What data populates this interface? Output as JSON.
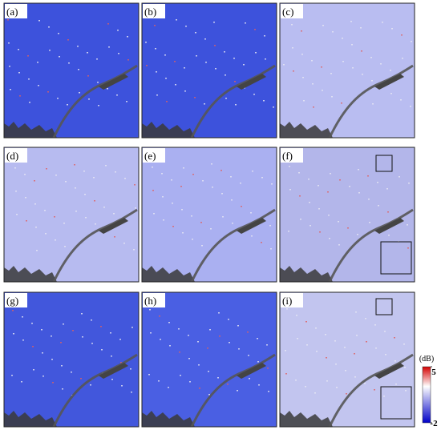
{
  "panels": [
    {
      "label": "(a)",
      "color": "#3d52dc"
    },
    {
      "label": "(b)",
      "color": "#3d52dc"
    },
    {
      "label": "(c)",
      "color": "#b9bdf1"
    },
    {
      "label": "(d)",
      "color": "#b7bbf0"
    },
    {
      "label": "(e)",
      "color": "#aab0f1"
    },
    {
      "label": "(f)",
      "color": "#b3b6ea"
    },
    {
      "label": "(g)",
      "color": "#4257dc"
    },
    {
      "label": "(h)",
      "color": "#4a5fe3"
    },
    {
      "label": "(i)",
      "color": "#c2c5ef"
    }
  ],
  "colorbar": {
    "label": "(dB)",
    "ticks": [
      5,
      -2
    ],
    "range": [
      -2,
      5
    ]
  }
}
